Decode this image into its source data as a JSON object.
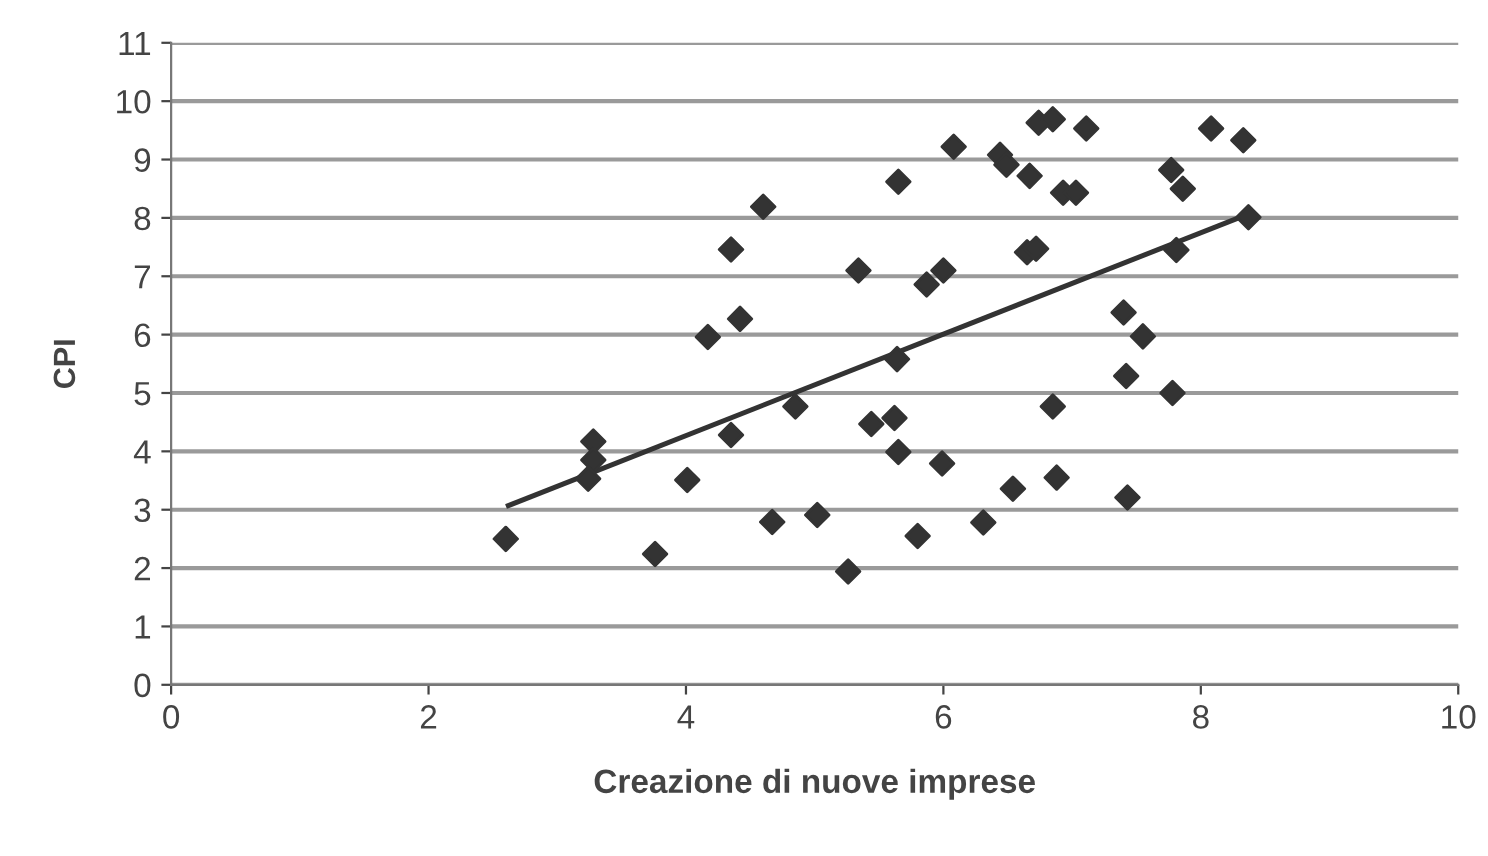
{
  "chart_data": {
    "type": "scatter",
    "xlabel": "Creazione di nuove imprese",
    "ylabel": "CPI",
    "xlim": [
      0,
      10
    ],
    "xticks": [
      0,
      2,
      4,
      6,
      8,
      10
    ],
    "ylim": [
      0,
      11
    ],
    "yticks": [
      0,
      1,
      2,
      3,
      4,
      5,
      6,
      7,
      8,
      9,
      10,
      11
    ],
    "grid": "y",
    "series": [
      {
        "marker": "diamond",
        "color": "#333333",
        "x": [
          2.6,
          3.28,
          3.28,
          3.24,
          3.76,
          4.01,
          4.17,
          4.35,
          4.42,
          4.35,
          4.6,
          4.67,
          4.85,
          5.02,
          5.26,
          5.34,
          5.44,
          5.62,
          5.64,
          5.65,
          5.65,
          5.8,
          5.87,
          6.0,
          5.99,
          6.08,
          6.31,
          6.44,
          6.49,
          6.54,
          6.67,
          6.65,
          6.72,
          6.74,
          6.85,
          6.85,
          6.88,
          6.93,
          7.03,
          7.11,
          7.4,
          7.42,
          7.43,
          7.55,
          7.77,
          7.78,
          7.81,
          7.86,
          8.08,
          8.33,
          8.37
        ],
        "values": [
          2.5,
          4.17,
          3.85,
          3.53,
          2.24,
          3.51,
          5.96,
          7.46,
          6.27,
          4.28,
          8.19,
          2.79,
          4.77,
          2.91,
          1.94,
          7.1,
          4.47,
          4.57,
          5.58,
          3.99,
          8.62,
          2.55,
          6.86,
          7.1,
          3.79,
          9.22,
          2.78,
          9.08,
          8.91,
          3.36,
          8.72,
          7.41,
          7.47,
          9.63,
          9.69,
          4.77,
          3.55,
          8.43,
          8.43,
          9.53,
          6.38,
          5.29,
          3.21,
          5.97,
          8.82,
          5.0,
          7.45,
          8.5,
          9.53,
          9.33,
          8.01
        ]
      },
      {
        "type": "line",
        "marker": "none",
        "color": "#333333",
        "x": [
          2.62,
          8.35
        ],
        "values": [
          3.07,
          8.05
        ]
      }
    ]
  }
}
